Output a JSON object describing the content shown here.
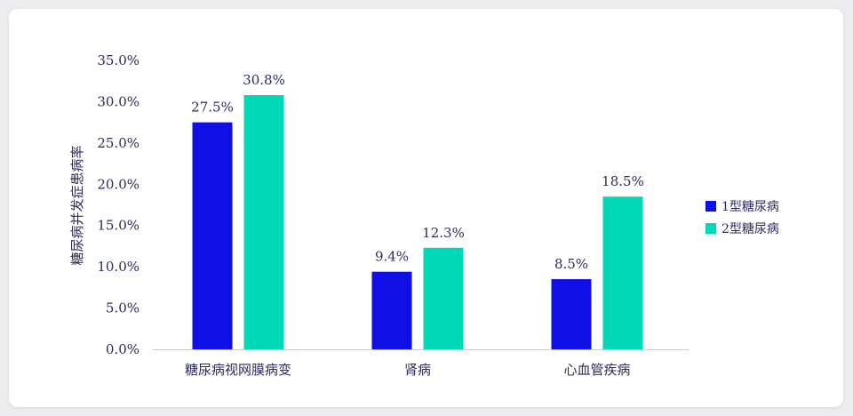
{
  "chart_data": {
    "type": "bar",
    "title": "",
    "xlabel": "",
    "ylabel": "糖尿病并发症患病率",
    "categories": [
      "糖尿病视网膜病变",
      "肾病",
      "心血管疾病"
    ],
    "series": [
      {
        "name": "1型糖尿病",
        "color": "#1010e6",
        "values": [
          27.5,
          9.4,
          8.5
        ]
      },
      {
        "name": "2型糖尿病",
        "color": "#00d9b8",
        "values": [
          30.8,
          12.3,
          18.5
        ]
      }
    ],
    "ylim": [
      0,
      35
    ],
    "yticks": [
      0,
      5,
      10,
      15,
      20,
      25,
      30,
      35
    ],
    "value_format": "percent_1dp",
    "grid": false,
    "legend_position": "right"
  }
}
